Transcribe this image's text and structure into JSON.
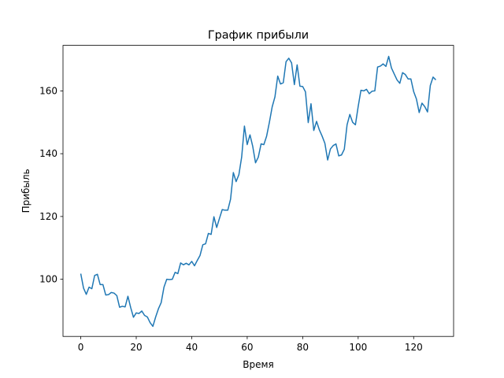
{
  "chart_data": {
    "type": "line",
    "title": "График прибыли",
    "xlabel": "Время",
    "ylabel": "Прибыль",
    "xlim": [
      -6.4,
      134.4
    ],
    "ylim": [
      81.8,
      174.5
    ],
    "xticks": [
      0,
      20,
      40,
      60,
      80,
      100,
      120
    ],
    "yticks": [
      100,
      120,
      140,
      160
    ],
    "grid": false,
    "series": [
      {
        "color": "#1f77b4",
        "x": [
          0,
          1,
          2,
          3,
          4,
          5,
          6,
          7,
          8,
          9,
          10,
          11,
          12,
          13,
          14,
          15,
          16,
          17,
          18,
          19,
          20,
          21,
          22,
          23,
          24,
          25,
          26,
          27,
          28,
          29,
          30,
          31,
          32,
          33,
          34,
          35,
          36,
          37,
          38,
          39,
          40,
          41,
          42,
          43,
          44,
          45,
          46,
          47,
          48,
          49,
          50,
          51,
          52,
          53,
          54,
          55,
          56,
          57,
          58,
          59,
          60,
          61,
          62,
          63,
          64,
          65,
          66,
          67,
          68,
          69,
          70,
          71,
          72,
          73,
          74,
          75,
          76,
          77,
          78,
          79,
          80,
          81,
          82,
          83,
          84,
          85,
          86,
          87,
          88,
          89,
          90,
          91,
          92,
          93,
          94,
          95,
          96,
          97,
          98,
          99,
          100,
          101,
          102,
          103,
          104,
          105,
          106,
          107,
          108,
          109,
          110,
          111,
          112,
          113,
          114,
          115,
          116,
          117,
          118,
          119,
          120,
          121,
          122,
          123,
          124,
          125,
          126,
          127,
          128
        ],
        "values": [
          101.8,
          97.2,
          95.2,
          97.5,
          97.0,
          101.2,
          101.6,
          98.3,
          98.3,
          95.0,
          95.1,
          95.8,
          95.6,
          94.8,
          91.1,
          91.4,
          91.2,
          94.6,
          91.0,
          87.9,
          89.3,
          89.1,
          89.9,
          88.5,
          88.0,
          86.2,
          85.0,
          88.0,
          90.6,
          92.6,
          97.5,
          100.0,
          99.9,
          100.0,
          102.2,
          101.8,
          105.2,
          104.6,
          105.1,
          104.6,
          105.7,
          104.3,
          106.0,
          107.6,
          111.0,
          111.3,
          114.6,
          114.3,
          119.9,
          116.5,
          119.4,
          122.2,
          122.0,
          122.0,
          125.5,
          134.0,
          131.1,
          133.3,
          138.9,
          148.8,
          142.9,
          146.0,
          142.3,
          137.1,
          138.9,
          143.1,
          142.9,
          145.6,
          150.0,
          154.9,
          158.1,
          164.7,
          162.2,
          162.6,
          169.3,
          170.4,
          168.9,
          162.0,
          168.3,
          161.5,
          161.4,
          159.7,
          149.9,
          155.9,
          147.4,
          150.3,
          147.6,
          145.6,
          143.3,
          138.0,
          141.5,
          142.6,
          143.1,
          139.3,
          139.6,
          141.4,
          149.2,
          152.5,
          150.0,
          149.2,
          155.0,
          160.2,
          160.0,
          160.5,
          159.1,
          159.9,
          160.0,
          167.6,
          167.9,
          168.6,
          167.8,
          171.0,
          167.3,
          165.4,
          163.5,
          162.4,
          165.8,
          165.2,
          163.8,
          163.8,
          159.8,
          157.4,
          153.1,
          156.1,
          155.0,
          153.3,
          161.7,
          164.4,
          163.5
        ]
      }
    ]
  }
}
